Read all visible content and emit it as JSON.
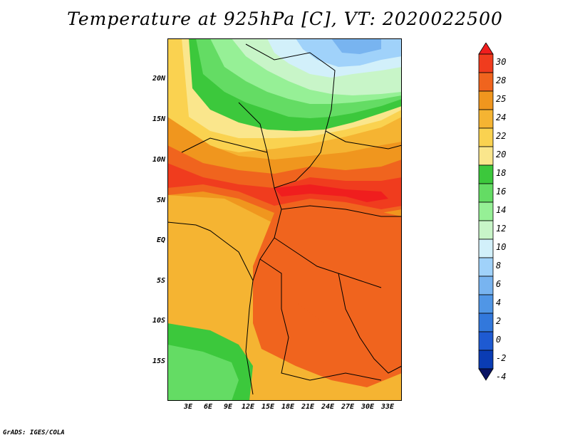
{
  "title": "Temperature at 925hPa [C], VT: 2020022500",
  "footer": "GrADS: IGES/COLA",
  "map": {
    "lat_labels": [
      "20N",
      "15N",
      "10N",
      "5N",
      "EQ",
      "5S",
      "10S",
      "15S"
    ],
    "lon_labels": [
      "3E",
      "6E",
      "9E",
      "12E",
      "15E",
      "18E",
      "21E",
      "24E",
      "27E",
      "30E",
      "33E"
    ],
    "lon_range": [
      0,
      35
    ],
    "lat_range": [
      -20,
      25
    ]
  },
  "colorbar": {
    "labels": [
      "30",
      "28",
      "25",
      "24",
      "22",
      "20",
      "18",
      "16",
      "14",
      "12",
      "10",
      "8",
      "6",
      "4",
      "2",
      "0",
      "-2",
      "-4"
    ],
    "colors": [
      "#f01e1e",
      "#f03c1e",
      "#f0641e",
      "#f0961e",
      "#f5b432",
      "#fad250",
      "#fae68c",
      "#3cc83c",
      "#64dc64",
      "#96f096",
      "#c8f5c8",
      "#d2f0fa",
      "#a0d2fa",
      "#78b4f0",
      "#5096e6",
      "#3278dc",
      "#1e5ad2",
      "#0a3cb4",
      "#0a1464"
    ]
  }
}
